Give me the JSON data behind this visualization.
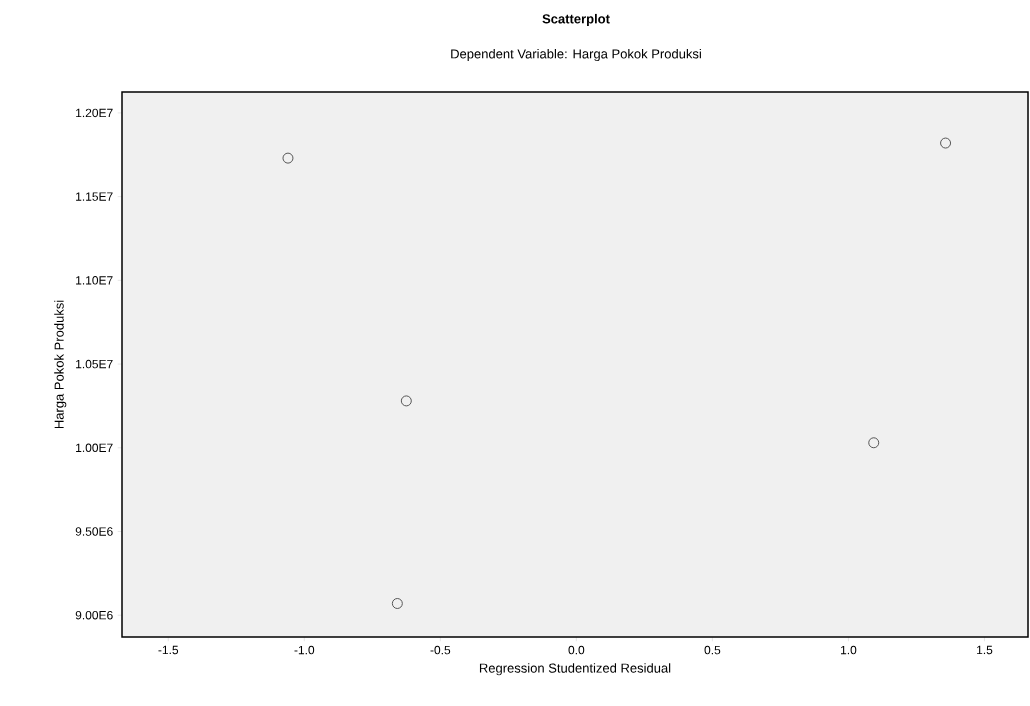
{
  "chart_data": {
    "type": "scatter",
    "title": "Scatterplot",
    "subtitle": "Dependent Variable: Harga Pokok Produksi",
    "xlabel": "Regression Studentized Residual",
    "ylabel": "Harga Pokok Produksi",
    "x": [
      -1.06,
      1.357,
      -0.625,
      1.093,
      -0.658
    ],
    "values": [
      11730000,
      11820000,
      10280000,
      10030000,
      9070000
    ],
    "color": "#555555",
    "marker": "circle",
    "grid": false,
    "xlim": [
      -1.67,
      1.66
    ],
    "ylim": [
      8870000,
      12125000
    ],
    "xticks": [
      -1.5,
      {
        "value": -1.0,
        "label": "-1.0"
      },
      -0.5,
      {
        "value": 0.0,
        "label": "0.0"
      },
      0.5,
      {
        "value": 1.0,
        "label": "1.0"
      },
      1.5
    ],
    "yticks": [
      {
        "value": 9000000,
        "label": "9.00E6"
      },
      {
        "value": 9500000,
        "label": "9.50E6"
      },
      {
        "value": 10000000,
        "label": "1.00E7"
      },
      {
        "value": 10500000,
        "label": "1.05E7"
      },
      {
        "value": 11000000,
        "label": "1.10E7"
      },
      {
        "value": 11500000,
        "label": "1.15E7"
      },
      {
        "value": 12000000,
        "label": "1.20E7"
      }
    ]
  }
}
